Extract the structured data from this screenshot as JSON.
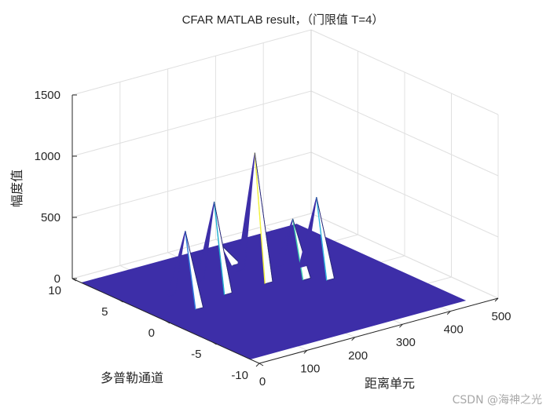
{
  "chart_data": {
    "type": "surface3d",
    "title": "CFAR MATLAB result，（门限值 T=4）",
    "xlabel": "距离单元",
    "ylabel": "多普勒通道",
    "zlabel": "幅度值",
    "xlim": [
      0,
      500
    ],
    "ylim": [
      -10,
      10
    ],
    "zlim": [
      0,
      1500
    ],
    "xticks": [
      "0",
      "100",
      "200",
      "300",
      "400",
      "500"
    ],
    "yticks": [
      "-10",
      "-5",
      "0",
      "5",
      "10"
    ],
    "zticks": [
      "0",
      "500",
      "1000",
      "1500"
    ],
    "surface_extent": {
      "x": [
        0,
        450
      ],
      "y": [
        -9,
        9
      ]
    },
    "floor_color": "#3d2ea8",
    "peaks": [
      {
        "x": 80,
        "y": 2,
        "z": 580
      },
      {
        "x": 160,
        "y": 3,
        "z": 700
      },
      {
        "x": 245,
        "y": 3,
        "z": 1010
      },
      {
        "x": 255,
        "y": 7,
        "z": 100
      },
      {
        "x": 305,
        "y": 2,
        "z": 440
      },
      {
        "x": 335,
        "y": 1,
        "z": 620
      }
    ],
    "grid": true
  },
  "watermark": "CSDN @海神之光"
}
